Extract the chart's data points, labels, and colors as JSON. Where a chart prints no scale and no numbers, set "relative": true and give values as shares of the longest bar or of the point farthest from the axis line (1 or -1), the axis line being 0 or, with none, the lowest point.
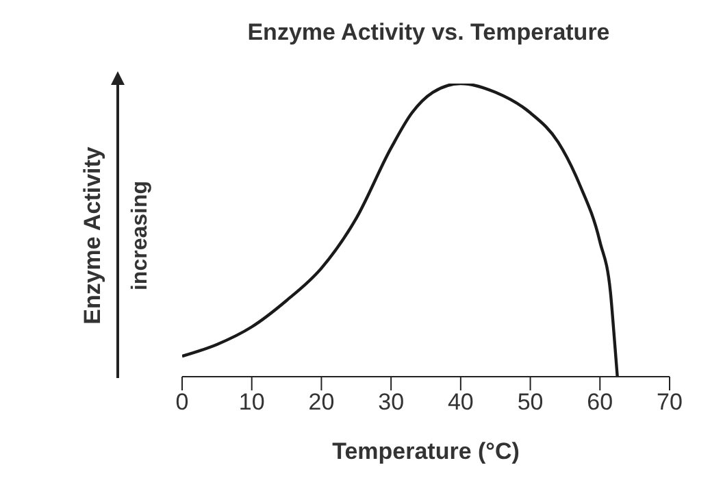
{
  "chart_data": {
    "type": "line",
    "title": "Enzyme Activity vs. Temperature",
    "xlabel": "Temperature (°C)",
    "ylabel": "Enzyme Activity",
    "annotations": [
      "increasing"
    ],
    "relative": true,
    "xlim": [
      0,
      70
    ],
    "xticks": [
      0,
      10,
      20,
      30,
      40,
      50,
      60,
      70
    ],
    "grid": false,
    "legend": false,
    "marker": "none",
    "line_style": "solid",
    "series": [
      {
        "color": "#1a1a1a",
        "x": [
          0,
          5,
          10,
          15,
          20,
          25,
          30,
          33,
          36,
          40,
          45,
          50,
          54,
          57,
          60,
          61.5,
          62,
          62.5
        ],
        "values": [
          0.07,
          0.11,
          0.17,
          0.26,
          0.37,
          0.54,
          0.78,
          0.9,
          0.97,
          1,
          0.97,
          0.9,
          0.8,
          0.66,
          0.46,
          0.29,
          0.15,
          0
        ]
      }
    ]
  }
}
